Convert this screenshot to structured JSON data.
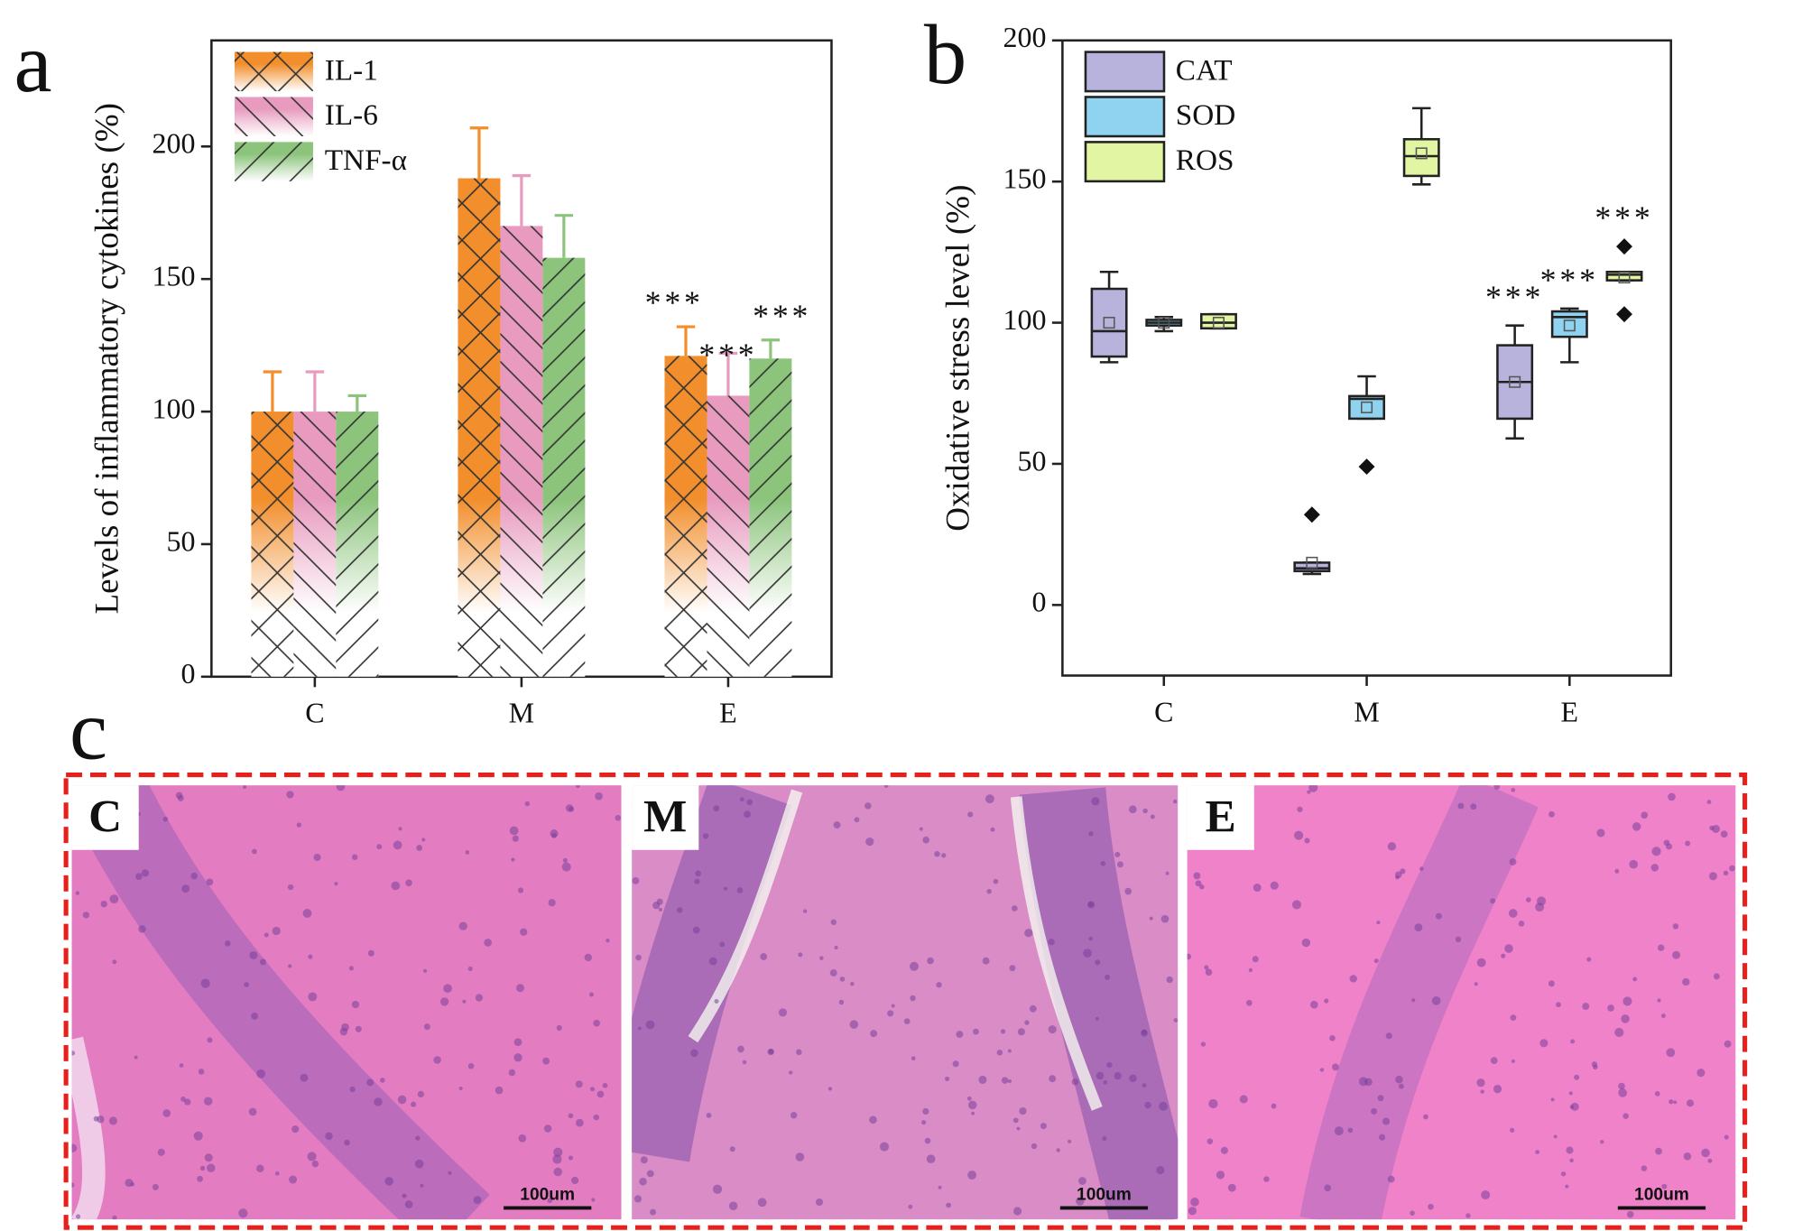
{
  "panel_labels": [
    "a",
    "b",
    "c"
  ],
  "chart_data": [
    {
      "type": "bar",
      "ylabel": "Levels of inflammatory cytokines (%)",
      "categories": [
        "C",
        "M",
        "E"
      ],
      "series": [
        {
          "name": "IL-1",
          "color": "#f28e2b",
          "hatch": "cross",
          "values": [
            100,
            188,
            121
          ],
          "errors": [
            15,
            19,
            11
          ],
          "annotations": [
            null,
            null,
            "***"
          ]
        },
        {
          "name": "IL-6",
          "color": "#e89bbf",
          "hatch": "back",
          "values": [
            100,
            170,
            106
          ],
          "errors": [
            15,
            19,
            16
          ],
          "annotations": [
            null,
            null,
            "***"
          ]
        },
        {
          "name": "TNF-α",
          "color": "#8cc47c",
          "hatch": "forward",
          "values": [
            100,
            158,
            120
          ],
          "errors": [
            6,
            16,
            7
          ],
          "annotations": [
            null,
            null,
            "***"
          ]
        }
      ],
      "ylim": [
        0,
        240
      ],
      "yticks": [
        0,
        50,
        100,
        150,
        200
      ],
      "legend": "upper left"
    },
    {
      "type": "box",
      "ylabel": "Oxidative stress level (%)",
      "categories": [
        "C",
        "M",
        "E"
      ],
      "series": [
        {
          "name": "CAT",
          "color": "#b7b3dd",
          "min": [
            86,
            11,
            59
          ],
          "q1": [
            88,
            12,
            66
          ],
          "median": [
            97,
            13,
            79
          ],
          "q3": [
            112,
            15,
            92
          ],
          "max": [
            118,
            15,
            99
          ],
          "mean": [
            100,
            15,
            79
          ],
          "outliers": [
            [],
            [
              32
            ],
            []
          ],
          "annotations": [
            null,
            null,
            "***"
          ]
        },
        {
          "name": "SOD",
          "color": "#8fd3f0",
          "min": [
            97,
            66,
            86
          ],
          "q1": [
            99,
            66,
            95
          ],
          "median": [
            100,
            73,
            102
          ],
          "q3": [
            101,
            74,
            104
          ],
          "max": [
            102,
            81,
            105
          ],
          "mean": [
            100,
            70,
            99
          ],
          "outliers": [
            [],
            [
              49
            ],
            []
          ],
          "annotations": [
            null,
            null,
            "***"
          ]
        },
        {
          "name": "ROS",
          "color": "#e2f5a2",
          "min": [
            98,
            149,
            115
          ],
          "q1": [
            98,
            152,
            115
          ],
          "median": [
            100,
            159,
            117
          ],
          "q3": [
            103,
            165,
            118
          ],
          "max": [
            103,
            176,
            118
          ],
          "mean": [
            100,
            160,
            116
          ],
          "outliers": [
            [],
            [],
            [
              103,
              127
            ]
          ],
          "annotations": [
            null,
            null,
            "***"
          ]
        }
      ],
      "ylim": [
        -25,
        200
      ],
      "yticks": [
        0,
        50,
        100,
        150,
        200
      ],
      "legend": "upper left"
    }
  ],
  "micrographs": {
    "labels": [
      "C",
      "M",
      "E"
    ],
    "scale_bar": "100um"
  }
}
